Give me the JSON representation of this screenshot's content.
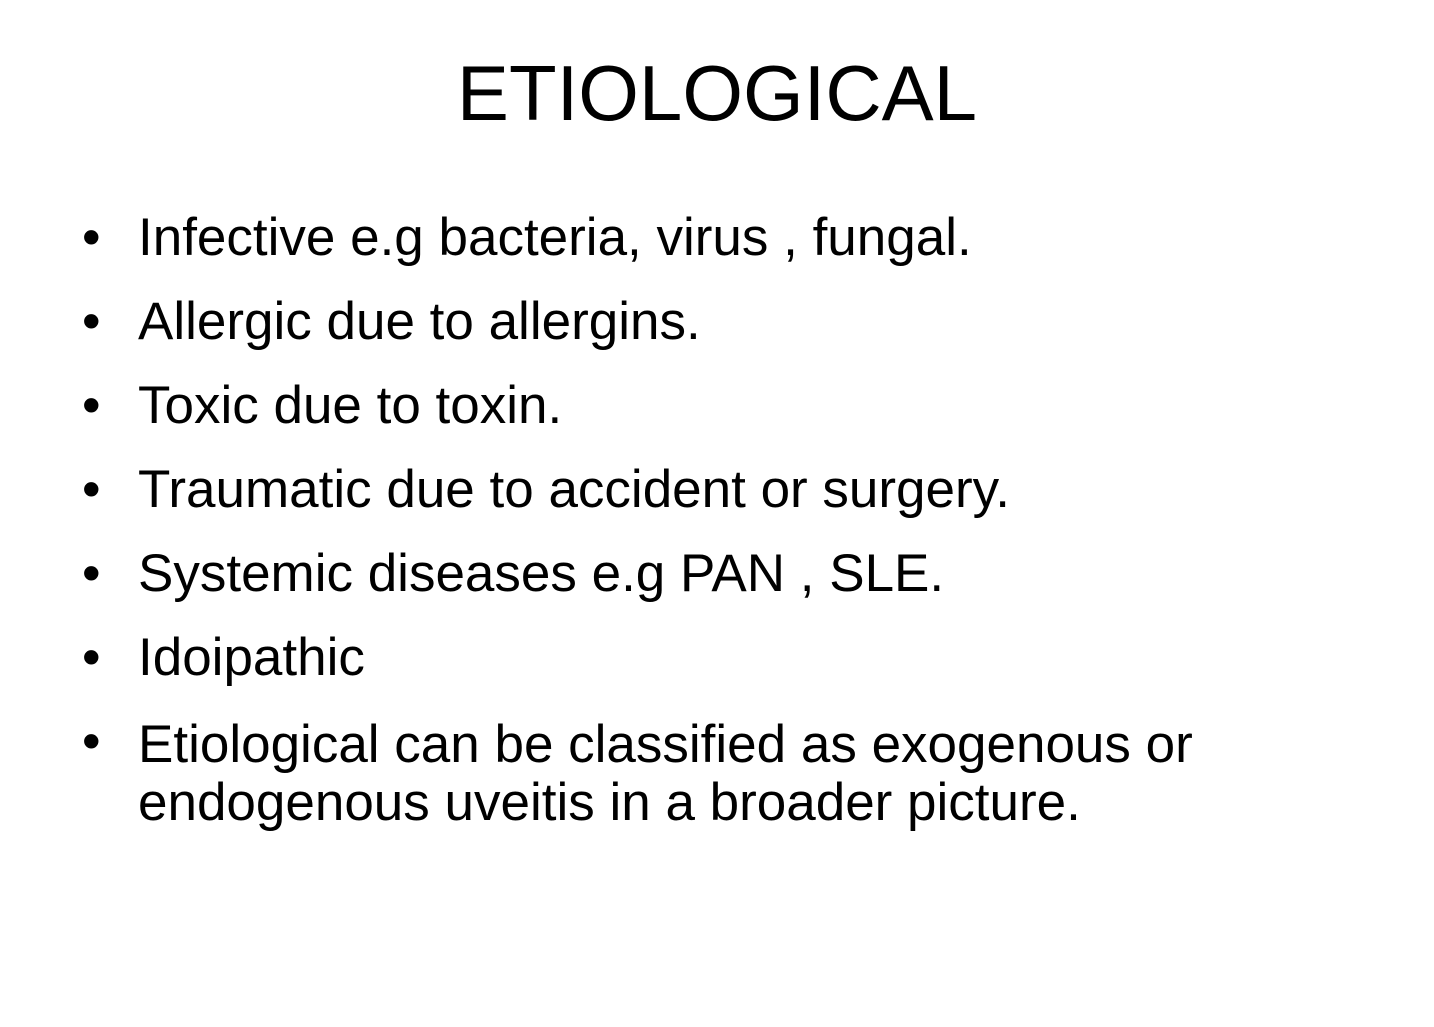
{
  "slide": {
    "title": "ETIOLOGICAL",
    "bullets": [
      {
        "marker": "•",
        "text": "Infective e.g bacteria, virus , fungal."
      },
      {
        "marker": "•",
        "text": "Allergic due to allergins."
      },
      {
        "marker": "•",
        "text": "Toxic due to toxin."
      },
      {
        "marker": "•",
        "text": "Traumatic due to accident or surgery."
      },
      {
        "marker": "•",
        "text": "Systemic diseases e.g PAN , SLE."
      },
      {
        "marker": "•",
        "text": "Idoipathic"
      },
      {
        "marker": "•",
        "text": "Etiological can be classified as exogenous or endogenous uveitis in a broader picture."
      }
    ]
  }
}
